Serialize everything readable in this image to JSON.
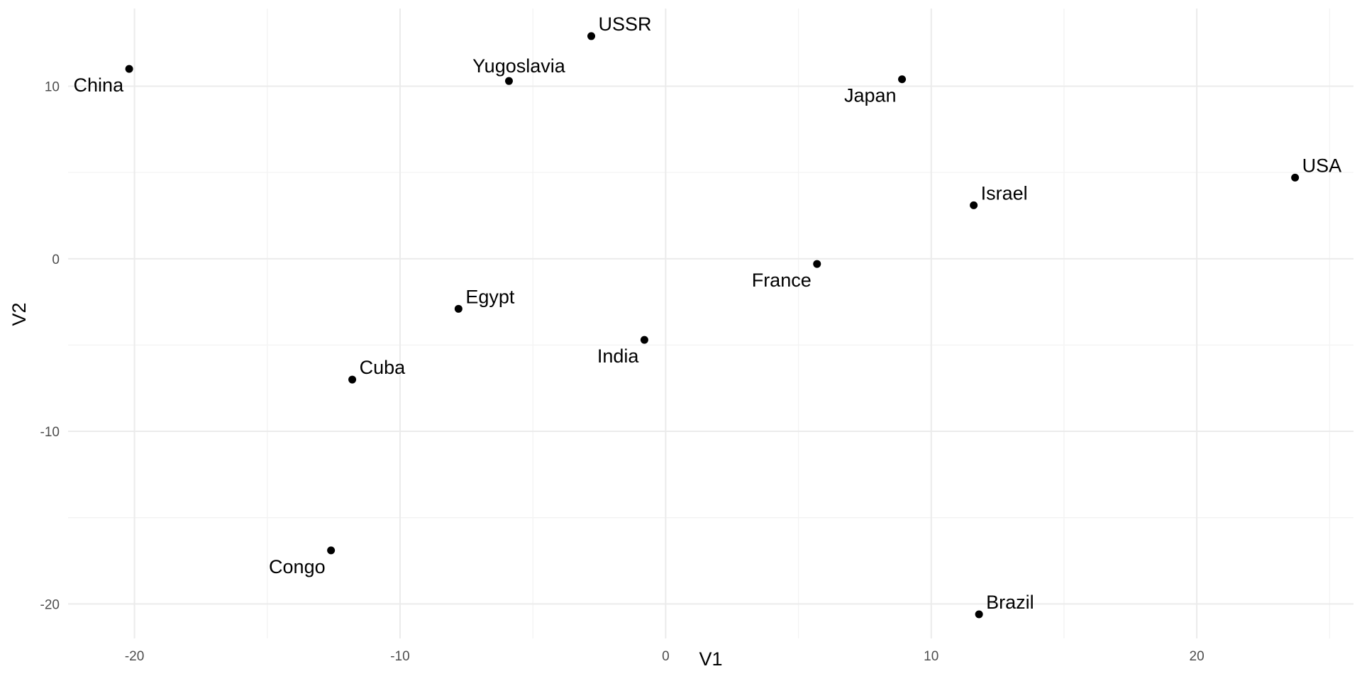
{
  "chart_data": {
    "type": "scatter",
    "title": "",
    "xlabel": "V1",
    "ylabel": "V2",
    "xlim": [
      -22.5,
      25.9
    ],
    "ylim": [
      -22.0,
      14.5
    ],
    "x_major_ticks": [
      -20,
      -10,
      0,
      10,
      20
    ],
    "y_major_ticks": [
      -20,
      -10,
      0,
      10
    ],
    "x_minor_ticks": [
      -15,
      -5,
      5,
      15,
      25
    ],
    "y_minor_ticks": [
      -15,
      -5,
      5
    ],
    "grid": true,
    "legend": "none",
    "point_color": "#000000",
    "points": [
      {
        "label": "USSR",
        "x": -2.8,
        "y": 12.9,
        "label_side": "right"
      },
      {
        "label": "Yugoslavia",
        "x": -5.9,
        "y": 10.3,
        "label_side": "above"
      },
      {
        "label": "China",
        "x": -20.2,
        "y": 11.0,
        "label_side": "below-left"
      },
      {
        "label": "Japan",
        "x": 8.9,
        "y": 10.4,
        "label_side": "below-left"
      },
      {
        "label": "USA",
        "x": 23.7,
        "y": 4.7,
        "label_side": "right"
      },
      {
        "label": "Israel",
        "x": 11.6,
        "y": 3.1,
        "label_side": "right"
      },
      {
        "label": "France",
        "x": 5.7,
        "y": -0.3,
        "label_side": "below-left"
      },
      {
        "label": "Egypt",
        "x": -7.8,
        "y": -2.9,
        "label_side": "right"
      },
      {
        "label": "India",
        "x": -0.8,
        "y": -4.7,
        "label_side": "below-left"
      },
      {
        "label": "Cuba",
        "x": -11.8,
        "y": -7.0,
        "label_side": "right"
      },
      {
        "label": "Congo",
        "x": -12.6,
        "y": -16.9,
        "label_side": "below-left"
      },
      {
        "label": "Brazil",
        "x": 11.8,
        "y": -20.6,
        "label_side": "right"
      }
    ]
  }
}
